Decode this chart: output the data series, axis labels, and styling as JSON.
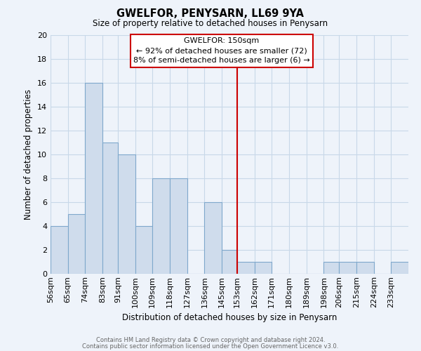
{
  "title": "GWELFOR, PENYSARN, LL69 9YA",
  "subtitle": "Size of property relative to detached houses in Penysarn",
  "xlabel": "Distribution of detached houses by size in Penysarn",
  "ylabel": "Number of detached properties",
  "bin_labels": [
    "56sqm",
    "65sqm",
    "74sqm",
    "83sqm",
    "91sqm",
    "100sqm",
    "109sqm",
    "118sqm",
    "127sqm",
    "136sqm",
    "145sqm",
    "153sqm",
    "162sqm",
    "171sqm",
    "180sqm",
    "189sqm",
    "198sqm",
    "206sqm",
    "215sqm",
    "224sqm",
    "233sqm"
  ],
  "bin_edges": [
    56,
    65,
    74,
    83,
    91,
    100,
    109,
    118,
    127,
    136,
    145,
    153,
    162,
    171,
    180,
    189,
    198,
    206,
    215,
    224,
    233,
    242
  ],
  "counts": [
    4,
    5,
    16,
    11,
    10,
    4,
    8,
    8,
    0,
    6,
    2,
    1,
    1,
    0,
    0,
    0,
    1,
    1,
    1,
    0,
    1
  ],
  "bar_color": "#cfdcec",
  "bar_edgecolor": "#7fa8cc",
  "vline_x": 153,
  "vline_color": "#cc0000",
  "annotation_title": "GWELFOR: 150sqm",
  "annotation_line1": "← 92% of detached houses are smaller (72)",
  "annotation_line2": "8% of semi-detached houses are larger (6) →",
  "annotation_box_color": "white",
  "annotation_box_edgecolor": "#cc0000",
  "ylim": [
    0,
    20
  ],
  "yticks": [
    0,
    2,
    4,
    6,
    8,
    10,
    12,
    14,
    16,
    18,
    20
  ],
  "grid_color": "#c8d8e8",
  "footer1": "Contains HM Land Registry data © Crown copyright and database right 2024.",
  "footer2": "Contains public sector information licensed under the Open Government Licence v3.0.",
  "background_color": "#eef3fa"
}
